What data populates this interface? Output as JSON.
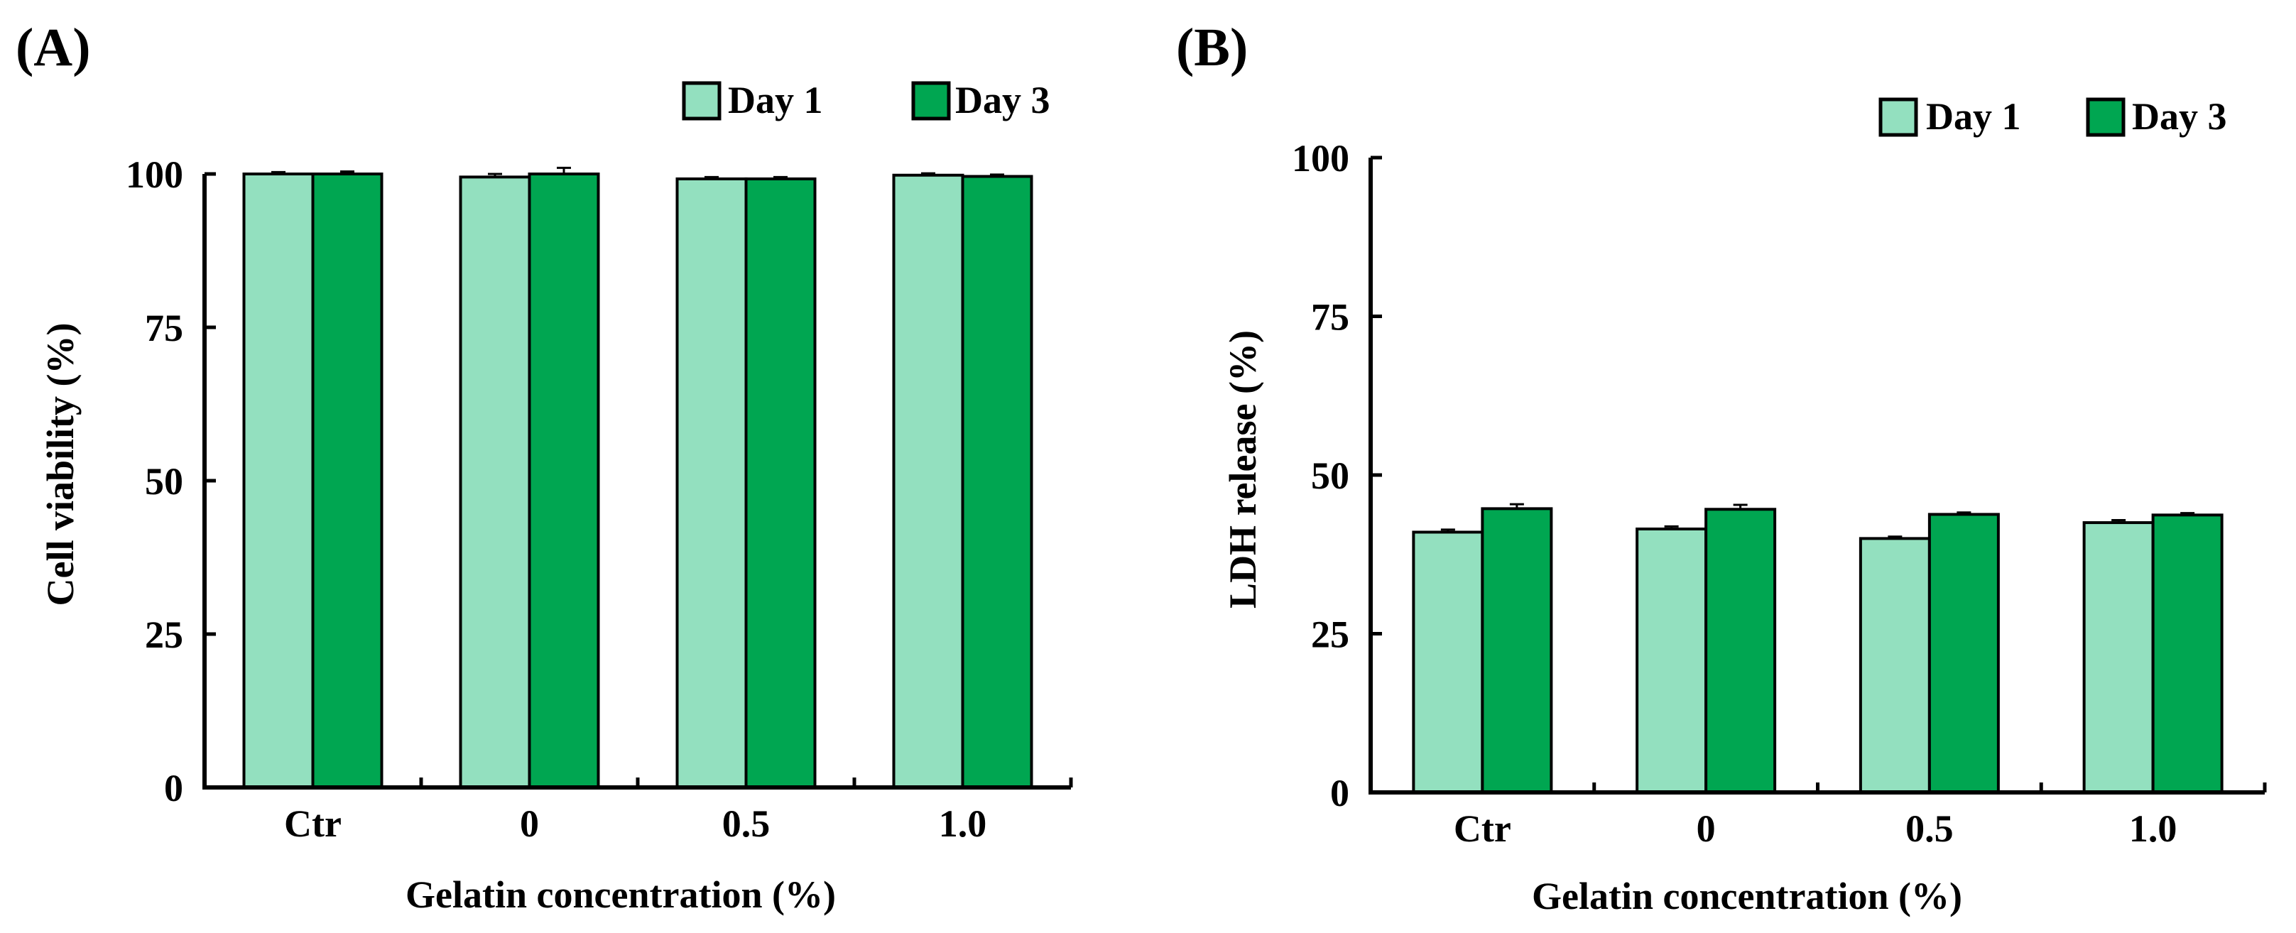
{
  "colors": {
    "day1": "#93e0bf",
    "day3": "#00a651",
    "axis": "#000000"
  },
  "chart_data": [
    {
      "panel_label": "(A)",
      "type": "bar",
      "categories": [
        "Ctr",
        "0",
        "0.5",
        "1.0"
      ],
      "series": [
        {
          "name": "Day 1",
          "values": [
            100,
            99.5,
            99.2,
            99.8
          ],
          "errors": [
            0.3,
            0.5,
            0.3,
            0.3
          ]
        },
        {
          "name": "Day 3",
          "values": [
            100,
            100,
            99.2,
            99.6
          ],
          "errors": [
            0.4,
            1.0,
            0.3,
            0.3
          ]
        }
      ],
      "xlabel": "Gelatin concentration (%)",
      "ylabel": "Cell viability (%)",
      "ylim": [
        0,
        100
      ],
      "yticks": [
        "0",
        "25",
        "50",
        "75",
        "100"
      ],
      "legend": "top-right"
    },
    {
      "panel_label": "(B)",
      "type": "bar",
      "categories": [
        "Ctr",
        "0",
        "0.5",
        "1.0"
      ],
      "series": [
        {
          "name": "Day 1",
          "values": [
            41,
            41.5,
            40,
            42.5
          ],
          "errors": [
            0.4,
            0.4,
            0.3,
            0.4
          ]
        },
        {
          "name": "Day 3",
          "values": [
            44.7,
            44.6,
            43.8,
            43.7
          ],
          "errors": [
            0.7,
            0.7,
            0.3,
            0.3
          ]
        }
      ],
      "xlabel": "Gelatin concentration (%)",
      "ylabel": "LDH release (%)",
      "ylim": [
        0,
        100
      ],
      "yticks": [
        "0",
        "25",
        "50",
        "75",
        "100"
      ],
      "legend": "top-right"
    }
  ]
}
